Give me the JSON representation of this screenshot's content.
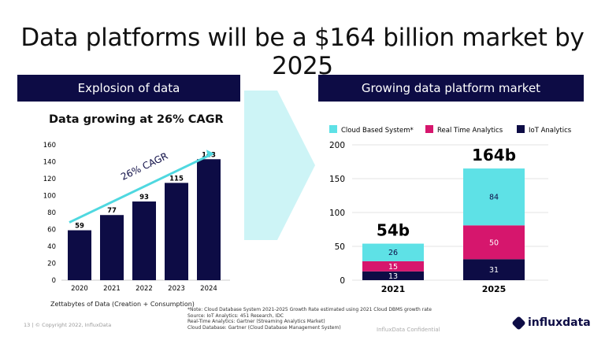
{
  "title": "Data platforms will be a $164 billion market by 2025",
  "left_header": "Explosion of data",
  "right_header": "Growing data platform market",
  "colors": {
    "navy": "#0d0c45",
    "magenta": "#d6166d",
    "cyan": "#5ee1e6",
    "arrow": "#cdf4f6"
  },
  "chart_data": [
    {
      "type": "bar",
      "title": "Data growing at 26% CAGR",
      "categories": [
        "2020",
        "2021",
        "2022",
        "2023",
        "2024"
      ],
      "values": [
        59,
        77,
        93,
        115,
        143
      ],
      "ylim": [
        0,
        160
      ],
      "yticks": [
        0,
        20,
        40,
        60,
        80,
        100,
        120,
        140,
        160
      ],
      "annotation": "26% CAGR",
      "xlabel": "Zettabytes of Data  (Creation + Consumption)"
    },
    {
      "type": "bar",
      "stacked": true,
      "categories": [
        "2021",
        "2025"
      ],
      "series": [
        {
          "name": "IoT Analytics",
          "values": [
            13,
            31
          ]
        },
        {
          "name": "Real Time Analytics",
          "values": [
            15,
            50
          ]
        },
        {
          "name": "Cloud Based System*",
          "values": [
            26,
            84
          ]
        }
      ],
      "totals": [
        "54b",
        "164b"
      ],
      "ylim": [
        0,
        200
      ],
      "yticks": [
        0,
        50,
        100,
        150,
        200
      ],
      "grid": true,
      "legend": "top"
    }
  ],
  "notes": [
    "*Note: Cloud Database System 2021-2025 Growth Rate estimated using 2021 Cloud DBMS growth rate",
    "Source: IoT Analytics: 451 Research, IDC",
    "Real-Time Analytics: Gartner (Streaming Analytics Market)",
    "Cloud Database: Gartner (Cloud Database Management System)"
  ],
  "confidential": "InfluxData Confidential",
  "footer": "13  |  © Copyright 2022, InfluxData",
  "logo": "influxdata"
}
